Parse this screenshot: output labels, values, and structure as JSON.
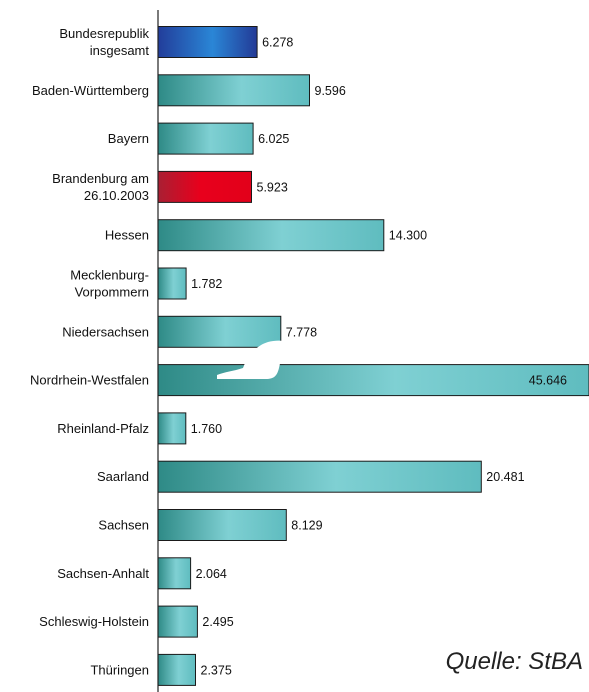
{
  "chart_data": {
    "type": "bar",
    "orientation": "horizontal",
    "categories": [
      "Bundesrepublik insgesamt",
      "Baden-Württemberg",
      "Bayern",
      "Brandenburg am 26.10.2003",
      "Hessen",
      "Mecklenburg-Vorpommern",
      "Niedersachsen",
      "Nordrhein-Westfalen",
      "Rheinland-Pfalz",
      "Saarland",
      "Sachsen",
      "Sachsen-Anhalt",
      "Schleswig-Holstein",
      "Thüringen"
    ],
    "category_lines": [
      [
        "Bundesrepublik",
        "insgesamt"
      ],
      [
        "Baden-Württemberg"
      ],
      [
        "Bayern"
      ],
      [
        "Brandenburg am",
        "26.10.2003"
      ],
      [
        "Hessen"
      ],
      [
        "Mecklenburg-",
        "Vorpommern"
      ],
      [
        "Niedersachsen"
      ],
      [
        "Nordrhein-Westfalen"
      ],
      [
        "Rheinland-Pfalz"
      ],
      [
        "Saarland"
      ],
      [
        "Sachsen"
      ],
      [
        "Sachsen-Anhalt"
      ],
      [
        "Schleswig-Holstein"
      ],
      [
        "Thüringen"
      ]
    ],
    "values": [
      6278,
      9596,
      6025,
      5923,
      14300,
      1782,
      7778,
      45646,
      1760,
      20481,
      8129,
      2064,
      2495,
      2375
    ],
    "value_labels": [
      "6.278",
      "9.596",
      "6.025",
      "5.923",
      "14.300",
      "1.782",
      "7.778",
      "45.646",
      "1.760",
      "20.481",
      "8.129",
      "2.064",
      "2.495",
      "2.375"
    ],
    "bar_colors": [
      "blue",
      "teal",
      "teal",
      "red",
      "teal",
      "teal",
      "teal",
      "teal",
      "teal",
      "teal",
      "teal",
      "teal",
      "teal",
      "teal"
    ],
    "axis_break": "Nordrhein-Westfalen",
    "broken_bar_display_value": 27300,
    "xlim": [
      0,
      27300
    ],
    "grid": false,
    "legend": "none",
    "source": "Quelle: StBA"
  },
  "colors": {
    "teal_dark": "#2e8a86",
    "teal_light": "#7fd0d3",
    "blue_dark": "#223d9a",
    "blue_light": "#2a86d6",
    "red_dark": "#b22335",
    "red_light": "#e8001c",
    "axis": "#222222"
  }
}
